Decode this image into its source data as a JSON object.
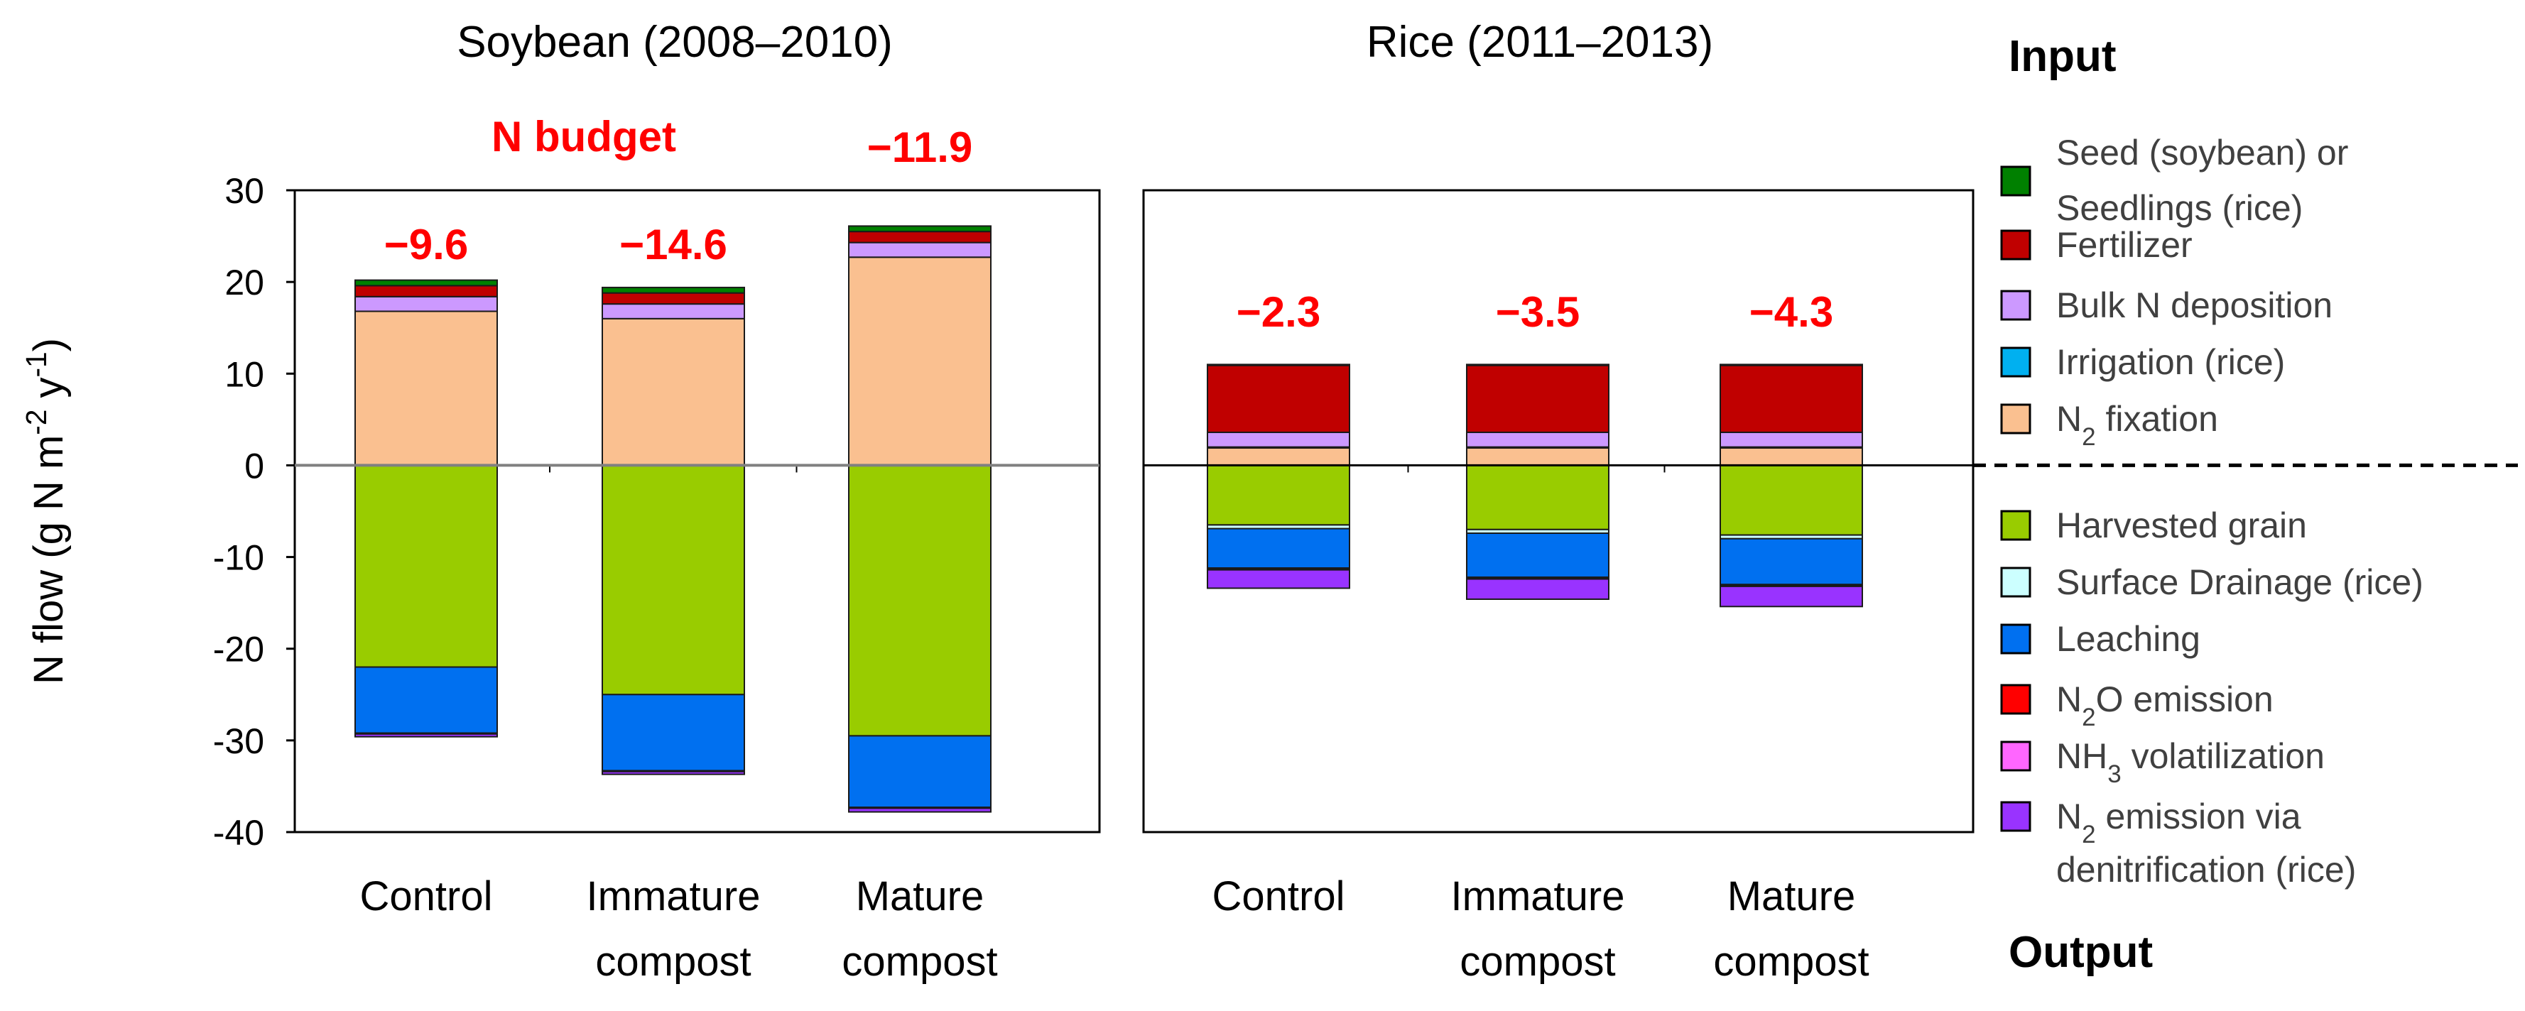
{
  "chart_data": {
    "type": "bar",
    "stacked": true,
    "ylabel": "N flow (g N m-2 y-1)",
    "ylim": [
      -40,
      30
    ],
    "yticks": [
      30,
      20,
      10,
      0,
      -10,
      -20,
      -30,
      -40
    ],
    "budget_heading": "N budget",
    "legend": {
      "input_heading": "Input",
      "output_heading": "Output",
      "input_items": [
        {
          "key": "seed",
          "label_lines": [
            "Seed (soybean) or",
            "Seedlings (rice)"
          ],
          "color": "#008000"
        },
        {
          "key": "fertilizer",
          "label_lines": [
            "Fertilizer"
          ],
          "color": "#c00000"
        },
        {
          "key": "bulk",
          "label_lines": [
            "Bulk N deposition"
          ],
          "color": "#cc99ff"
        },
        {
          "key": "irrigation",
          "label_lines": [
            "Irrigation (rice)"
          ],
          "color": "#00b0f0"
        },
        {
          "key": "n2fix",
          "label_lines": [
            "N2 fixation"
          ],
          "color": "#fac090"
        }
      ],
      "output_items": [
        {
          "key": "grain",
          "label_lines": [
            "Harvested grain"
          ],
          "color": "#99cc00"
        },
        {
          "key": "drainage",
          "label_lines": [
            "Surface Drainage (rice)"
          ],
          "color": "#ccffff"
        },
        {
          "key": "leaching",
          "label_lines": [
            "Leaching"
          ],
          "color": "#0070f0"
        },
        {
          "key": "n2o",
          "label_lines": [
            "N2O emission"
          ],
          "color": "#ff0000"
        },
        {
          "key": "nh3",
          "label_lines": [
            "NH3 volatilization"
          ],
          "color": "#ff66ff"
        },
        {
          "key": "n2",
          "label_lines": [
            "N2 emission via",
            "denitrification (rice)"
          ],
          "color": "#9933ff"
        }
      ]
    },
    "panels": [
      {
        "title": "Soybean (2008–2010)",
        "bars": [
          {
            "category_lines": [
              "Control"
            ],
            "budget": "−9.6",
            "inputs": {
              "n2fix": 16.8,
              "irrigation": 0,
              "bulk": 1.6,
              "fertilizer": 1.2,
              "seed": 0.6
            },
            "outputs": {
              "grain": 22.0,
              "drainage": 0,
              "leaching": 7.2,
              "n2o": 0.1,
              "nh3": 0,
              "n2": 0.3
            }
          },
          {
            "category_lines": [
              "Immature",
              "compost"
            ],
            "budget": "−14.6",
            "inputs": {
              "n2fix": 16.0,
              "irrigation": 0,
              "bulk": 1.6,
              "fertilizer": 1.2,
              "seed": 0.6
            },
            "outputs": {
              "grain": 25.0,
              "drainage": 0,
              "leaching": 8.3,
              "n2o": 0.1,
              "nh3": 0,
              "n2": 0.3
            }
          },
          {
            "category_lines": [
              "Mature",
              "compost"
            ],
            "budget": "−11.9",
            "inputs": {
              "n2fix": 22.7,
              "irrigation": 0,
              "bulk": 1.6,
              "fertilizer": 1.2,
              "seed": 0.6
            },
            "outputs": {
              "grain": 29.5,
              "drainage": 0,
              "leaching": 7.8,
              "n2o": 0.1,
              "nh3": 0,
              "n2": 0.4
            }
          }
        ]
      },
      {
        "title": "Rice (2011–2013)",
        "bars": [
          {
            "category_lines": [
              "Control"
            ],
            "budget": "−2.3",
            "inputs": {
              "n2fix": 1.9,
              "irrigation": 0.1,
              "bulk": 1.6,
              "fertilizer": 7.3,
              "seed": 0.1
            },
            "outputs": {
              "grain": 6.5,
              "drainage": 0.4,
              "leaching": 4.3,
              "n2o": 0.1,
              "nh3": 0.1,
              "n2": 2.0
            }
          },
          {
            "category_lines": [
              "Immature",
              "compost"
            ],
            "budget": "−3.5",
            "inputs": {
              "n2fix": 1.9,
              "irrigation": 0.1,
              "bulk": 1.6,
              "fertilizer": 7.3,
              "seed": 0.1
            },
            "outputs": {
              "grain": 7.0,
              "drainage": 0.4,
              "leaching": 4.8,
              "n2o": 0.1,
              "nh3": 0.1,
              "n2": 2.2
            }
          },
          {
            "category_lines": [
              "Mature",
              "compost"
            ],
            "budget": "−4.3",
            "inputs": {
              "n2fix": 1.9,
              "irrigation": 0.1,
              "bulk": 1.6,
              "fertilizer": 7.3,
              "seed": 0.1
            },
            "outputs": {
              "grain": 7.6,
              "drainage": 0.4,
              "leaching": 5.0,
              "n2o": 0.1,
              "nh3": 0.1,
              "n2": 2.2
            }
          }
        ]
      }
    ]
  }
}
